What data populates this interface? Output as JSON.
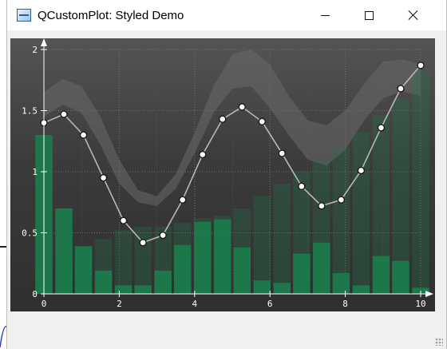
{
  "window": {
    "title": "QCustomPlot: Styled Demo"
  },
  "icons": {
    "app": "app-icon",
    "minimize": "minimize-icon",
    "maximize": "maximize-icon",
    "close": "close-icon"
  },
  "colors": {
    "plot_bg_top": "#545454",
    "plot_bg_bottom": "#2f2f2f",
    "bars": "#1b7a4c",
    "line": "#b8b8b8",
    "band": "#6a6a6a",
    "axis": "#ffffff"
  },
  "chart_data": {
    "type": "line",
    "title": "",
    "xlabel": "",
    "ylabel": "",
    "xlim": [
      0,
      10
    ],
    "ylim": [
      0,
      2
    ],
    "grid": true,
    "x_ticks": [
      "0",
      "2",
      "4",
      "6",
      "8",
      "10"
    ],
    "y_ticks": [
      "0",
      "0.5",
      "1",
      "1.5",
      "2"
    ],
    "series": [
      {
        "kind": "line",
        "x": [
          0,
          0.53,
          1.05,
          1.58,
          2.11,
          2.63,
          3.16,
          3.68,
          4.21,
          4.74,
          5.26,
          5.79,
          6.32,
          6.84,
          7.37,
          7.89,
          8.42,
          8.95,
          9.47,
          10
        ],
        "y": [
          1.4,
          1.47,
          1.3,
          0.95,
          0.6,
          0.42,
          0.48,
          0.77,
          1.14,
          1.43,
          1.53,
          1.41,
          1.15,
          0.88,
          0.72,
          0.77,
          1.01,
          1.36,
          1.68,
          1.87
        ]
      },
      {
        "kind": "bar",
        "x": [
          0,
          0.53,
          1.05,
          1.58,
          2.11,
          2.63,
          3.16,
          3.68,
          4.21,
          4.74,
          5.26,
          5.79,
          6.32,
          6.84,
          7.37,
          7.89,
          8.42,
          8.95,
          9.47,
          10
        ],
        "y": [
          1.3,
          0.7,
          0.39,
          0.19,
          0.07,
          0.07,
          0.19,
          0.4,
          0.59,
          0.61,
          0.38,
          0.11,
          0.09,
          0.33,
          0.42,
          0.17,
          0.07,
          0.31,
          0.27,
          0.05
        ]
      },
      {
        "kind": "bar",
        "x": [
          0,
          0.53,
          1.05,
          1.58,
          2.11,
          2.63,
          3.16,
          3.68,
          4.21,
          4.74,
          5.26,
          5.79,
          6.32,
          6.84,
          7.37,
          7.89,
          8.42,
          8.95,
          9.47,
          10
        ],
        "y": [
          0.2,
          0.28,
          0.36,
          0.45,
          0.52,
          0.55,
          0.55,
          0.58,
          0.62,
          0.64,
          0.7,
          0.8,
          0.9,
          1.0,
          1.1,
          1.2,
          1.32,
          1.46,
          1.6,
          1.82
        ]
      },
      {
        "kind": "band",
        "x": [
          0,
          0.5,
          1,
          1.5,
          2,
          2.5,
          3,
          3.5,
          4,
          4.5,
          5,
          5.5,
          6,
          6.5,
          7,
          7.5,
          8,
          8.5,
          9,
          9.5,
          10
        ],
        "upper": [
          1.65,
          1.76,
          1.7,
          1.45,
          1.1,
          0.85,
          0.8,
          0.98,
          1.32,
          1.7,
          1.96,
          2.0,
          1.88,
          1.62,
          1.42,
          1.38,
          1.5,
          1.72,
          1.9,
          1.92,
          1.88
        ],
        "lower": [
          1.45,
          1.55,
          1.48,
          1.22,
          0.9,
          0.75,
          0.72,
          0.86,
          1.15,
          1.48,
          1.68,
          1.7,
          1.52,
          1.3,
          1.1,
          1.05,
          1.18,
          1.42,
          1.6,
          1.66,
          1.62
        ]
      }
    ]
  }
}
